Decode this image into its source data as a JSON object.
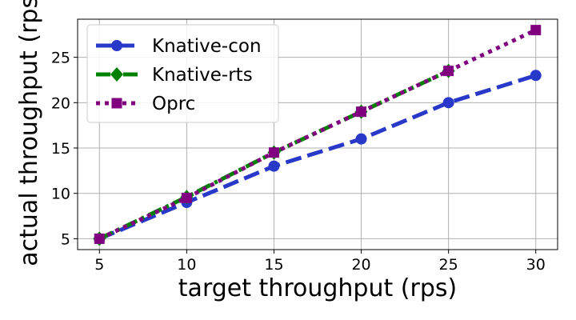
{
  "chart_data": {
    "type": "line",
    "title": "",
    "xlabel": "target throughput (rps)",
    "ylabel": "actual throughput (rps)",
    "x": [
      5,
      10,
      15,
      20,
      25,
      30
    ],
    "xlim": [
      3.75,
      31.25
    ],
    "ylim": [
      3.8,
      29.2
    ],
    "xticks": [
      5,
      10,
      15,
      20,
      25,
      30
    ],
    "yticks": [
      5,
      10,
      15,
      20,
      25
    ],
    "grid": true,
    "legend_position": "top-left",
    "series": [
      {
        "name": "Knative-con",
        "color": "#2838c8",
        "marker": "circle",
        "linestyle": "dashed",
        "x": [
          5,
          10,
          15,
          20,
          25,
          30
        ],
        "values": [
          5,
          9,
          13,
          16,
          20,
          23
        ]
      },
      {
        "name": "Knative-rts",
        "color": "#008000",
        "marker": "diamond",
        "linestyle": "dashdot",
        "x": [
          5,
          10,
          15,
          20,
          25
        ],
        "values": [
          5,
          9.6,
          14.5,
          19,
          23.5
        ]
      },
      {
        "name": "Oprc",
        "color": "#800080",
        "marker": "square",
        "linestyle": "dotted",
        "x": [
          5,
          10,
          15,
          20,
          25,
          30
        ],
        "values": [
          5,
          9.5,
          14.5,
          19,
          23.5,
          28
        ]
      }
    ]
  }
}
